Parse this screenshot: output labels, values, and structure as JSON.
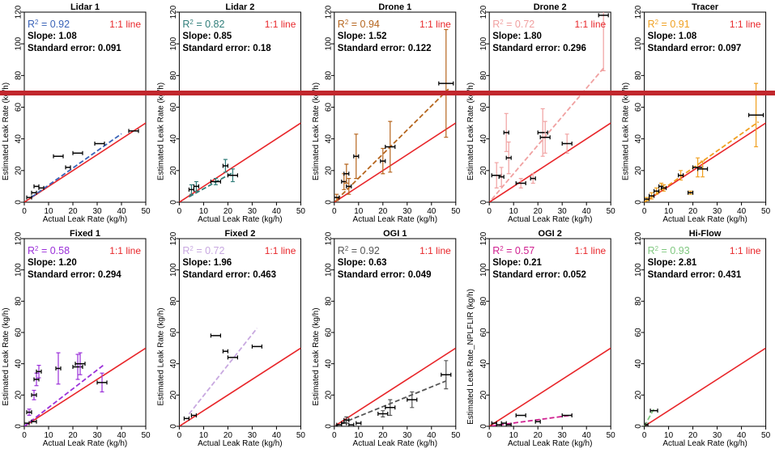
{
  "chart_data": [
    {
      "type": "scatter",
      "title": "Lidar 1",
      "xlabel": "Actual Leak Rate (kg/h)",
      "ylabel": "Estimated Leak Rate (kg/h)",
      "xlim": [
        0,
        50
      ],
      "ylim": [
        0,
        120
      ],
      "xticks": [
        0,
        10,
        20,
        30,
        40,
        50
      ],
      "yticks": [
        0,
        20,
        40,
        60,
        80,
        100,
        120
      ],
      "r2_label": "R",
      "r2_value": "= 0.92",
      "slope_text": "Slope: 1.08",
      "stderr_text": "Standard error: 0.091",
      "legend_text": "1:1 line",
      "fit_color": "#3a63b8",
      "point_color": "#000000",
      "fit_slope": 1.08,
      "fit_x": [
        3,
        40
      ],
      "points": [
        {
          "x": 2,
          "y": 3,
          "xe": 1
        },
        {
          "x": 4,
          "y": 6,
          "xe": 1
        },
        {
          "x": 5,
          "y": 10,
          "xe": 1
        },
        {
          "x": 7,
          "y": 9,
          "xe": 1
        },
        {
          "x": 14,
          "y": 29,
          "xe": 2
        },
        {
          "x": 18,
          "y": 22,
          "xe": 1
        },
        {
          "x": 22,
          "y": 31,
          "xe": 2
        },
        {
          "x": 31,
          "y": 37,
          "xe": 2
        },
        {
          "x": 45,
          "y": 45,
          "xe": 2
        }
      ]
    },
    {
      "type": "scatter",
      "title": "Lidar 2",
      "xlabel": "Actual Leak Rate (kg/h)",
      "ylabel": "Estimated Leak Rate (kg/h)",
      "xlim": [
        0,
        50
      ],
      "ylim": [
        0,
        120
      ],
      "xticks": [
        0,
        10,
        20,
        30,
        40,
        50
      ],
      "yticks": [
        0,
        20,
        40,
        60,
        80,
        100,
        120
      ],
      "r2_label": "R",
      "r2_value": "= 0.82",
      "slope_text": "Slope: 0.85",
      "stderr_text": "Standard error: 0.18",
      "legend_text": "1:1 line",
      "fit_color": "#2f7d79",
      "point_color": "#2f7d79",
      "fit_slope": 0.85,
      "fit_x": [
        4,
        22
      ],
      "points": [
        {
          "x": 5,
          "y": 8,
          "xe": 1,
          "ye": 3
        },
        {
          "x": 7,
          "y": 10,
          "xe": 1,
          "ye": 3
        },
        {
          "x": 15,
          "y": 13,
          "xe": 2,
          "ye": 2
        },
        {
          "x": 19,
          "y": 23,
          "xe": 1,
          "ye": 4
        },
        {
          "x": 22,
          "y": 17,
          "xe": 2,
          "ye": 4
        }
      ]
    },
    {
      "type": "scatter",
      "title": "Drone 1",
      "xlabel": "Actual Leak Rate (kg/h)",
      "ylabel": "Estimated Leak Rate (kg/h)",
      "xlim": [
        0,
        50
      ],
      "ylim": [
        0,
        120
      ],
      "xticks": [
        0,
        10,
        20,
        30,
        40,
        50
      ],
      "yticks": [
        0,
        20,
        40,
        60,
        80,
        100,
        120
      ],
      "r2_label": "R",
      "r2_value": "= 0.94",
      "slope_text": "Slope: 1.52",
      "stderr_text": "Standard error: 0.122",
      "legend_text": "1:1 line",
      "fit_color": "#b5651d",
      "point_color": "#b5651d",
      "fit_slope": 1.52,
      "fit_x": [
        1,
        47
      ],
      "points": [
        {
          "x": 1,
          "y": 3,
          "xe": 1,
          "ye": 2
        },
        {
          "x": 4,
          "y": 13,
          "xe": 1,
          "ye": 5
        },
        {
          "x": 5,
          "y": 18,
          "xe": 1,
          "ye": 6
        },
        {
          "x": 6,
          "y": 10,
          "xe": 1,
          "ye": 5
        },
        {
          "x": 9,
          "y": 29,
          "xe": 1,
          "ye": 14
        },
        {
          "x": 20,
          "y": 26,
          "xe": 1,
          "ye": 8
        },
        {
          "x": 23,
          "y": 35,
          "xe": 2,
          "ye": 16
        },
        {
          "x": 46,
          "y": 75,
          "xe": 3,
          "ye": 34
        }
      ]
    },
    {
      "type": "scatter",
      "title": "Drone 2",
      "xlabel": "Actual Leak Rate (kg/h)",
      "ylabel": "Estimated Leak Rate (kg/h)",
      "xlim": [
        0,
        50
      ],
      "ylim": [
        0,
        120
      ],
      "xticks": [
        0,
        10,
        20,
        30,
        40,
        50
      ],
      "yticks": [
        0,
        20,
        40,
        60,
        80,
        100,
        120
      ],
      "r2_label": "R",
      "r2_value": "= 0.72",
      "slope_text": "Slope: 1.80",
      "stderr_text": "Standard error: 0.296",
      "legend_text": "1:1 line",
      "fit_color": "#f0a0a0",
      "point_color": "#f0a0a0",
      "fit_slope": 1.8,
      "fit_x": [
        1,
        47
      ],
      "points": [
        {
          "x": 3,
          "y": 17,
          "xe": 2,
          "ye": 8
        },
        {
          "x": 5,
          "y": 16,
          "xe": 1,
          "ye": 6
        },
        {
          "x": 7,
          "y": 44,
          "xe": 1,
          "ye": 12
        },
        {
          "x": 8,
          "y": 28,
          "xe": 1,
          "ye": 10
        },
        {
          "x": 13,
          "y": 12,
          "xe": 2,
          "ye": 3
        },
        {
          "x": 18,
          "y": 15,
          "xe": 1,
          "ye": 3
        },
        {
          "x": 22,
          "y": 44,
          "xe": 2,
          "ye": 15
        },
        {
          "x": 23,
          "y": 41,
          "xe": 2,
          "ye": 10
        },
        {
          "x": 32,
          "y": 37,
          "xe": 2,
          "ye": 6
        },
        {
          "x": 47,
          "y": 118,
          "xe": 2,
          "ye": 35
        }
      ]
    },
    {
      "type": "scatter",
      "title": "Tracer",
      "xlabel": "Actual Leak Rate (kg/h)",
      "ylabel": "Estimated Leak Rate (kg/h)",
      "xlim": [
        0,
        50
      ],
      "ylim": [
        0,
        120
      ],
      "xticks": [
        0,
        10,
        20,
        30,
        40,
        50
      ],
      "yticks": [
        0,
        20,
        40,
        60,
        80,
        100,
        120
      ],
      "r2_label": "R",
      "r2_value": "= 0.91",
      "slope_text": "Slope: 1.08",
      "stderr_text": "Standard error: 0.097",
      "legend_text": "1:1 line",
      "fit_color": "#f0a020",
      "point_color": "#f0a020",
      "fit_slope": 1.08,
      "fit_x": [
        0,
        47
      ],
      "points": [
        {
          "x": 1,
          "y": 2,
          "xe": 1,
          "ye": 1
        },
        {
          "x": 3,
          "y": 4,
          "xe": 1,
          "ye": 2
        },
        {
          "x": 5,
          "y": 7,
          "xe": 1,
          "ye": 2
        },
        {
          "x": 7,
          "y": 10,
          "xe": 1,
          "ye": 2
        },
        {
          "x": 8,
          "y": 9,
          "xe": 1,
          "ye": 2
        },
        {
          "x": 15,
          "y": 17,
          "xe": 1,
          "ye": 3
        },
        {
          "x": 19,
          "y": 6,
          "xe": 1,
          "ye": 1
        },
        {
          "x": 22,
          "y": 22,
          "xe": 2,
          "ye": 6
        },
        {
          "x": 24,
          "y": 21,
          "xe": 2,
          "ye": 5
        },
        {
          "x": 46,
          "y": 55,
          "xe": 3,
          "ye": 20
        }
      ]
    },
    {
      "type": "scatter",
      "title": "Fixed 1",
      "xlabel": "Actual Leak Rate (kg/h)",
      "ylabel": "Estimated Leak Rate (kg/h)",
      "xlim": [
        0,
        50
      ],
      "ylim": [
        0,
        120
      ],
      "xticks": [
        0,
        10,
        20,
        30,
        40,
        50
      ],
      "yticks": [
        0,
        20,
        40,
        60,
        80,
        100,
        120
      ],
      "r2_label": "R",
      "r2_value": "= 0.58",
      "slope_text": "Slope: 1.20",
      "stderr_text": "Standard error: 0.294",
      "legend_text": "1:1 line",
      "fit_color": "#9b30d9",
      "point_color": "#9b30d9",
      "fit_slope": 1.2,
      "fit_x": [
        0,
        33
      ],
      "points": [
        {
          "x": 2,
          "y": 9,
          "xe": 1,
          "ye": 2
        },
        {
          "x": 4,
          "y": 20,
          "xe": 1,
          "ye": 3
        },
        {
          "x": 5,
          "y": 30,
          "xe": 1,
          "ye": 4
        },
        {
          "x": 6,
          "y": 35,
          "xe": 1,
          "ye": 4
        },
        {
          "x": 14,
          "y": 37,
          "xe": 1,
          "ye": 10
        },
        {
          "x": 22,
          "y": 38,
          "xe": 2,
          "ye": 8
        },
        {
          "x": 23,
          "y": 40,
          "xe": 2,
          "ye": 7
        },
        {
          "x": 32,
          "y": 28,
          "xe": 2,
          "ye": 6
        },
        {
          "x": 1,
          "y": 2,
          "xe": 1
        },
        {
          "x": 4,
          "y": 3,
          "xe": 1
        }
      ]
    },
    {
      "type": "scatter",
      "title": "Fixed 2",
      "xlabel": "Actual Leak Rate (kg/h)",
      "ylabel": "Estimated Leak Rate (kg/h)",
      "xlim": [
        0,
        50
      ],
      "ylim": [
        0,
        120
      ],
      "xticks": [
        0,
        10,
        20,
        30,
        40,
        50
      ],
      "yticks": [
        0,
        20,
        40,
        60,
        80,
        100,
        120
      ],
      "r2_label": "R",
      "r2_value": "= 0.72",
      "slope_text": "Slope: 1.96",
      "stderr_text": "Standard error: 0.463",
      "legend_text": "1:1 line",
      "fit_color": "#c8a8e0",
      "point_color": "#000000",
      "fit_slope": 1.96,
      "fit_x": [
        4,
        32
      ],
      "points": [
        {
          "x": 3,
          "y": 5,
          "xe": 1
        },
        {
          "x": 6,
          "y": 7,
          "xe": 1
        },
        {
          "x": 15,
          "y": 58,
          "xe": 2
        },
        {
          "x": 19,
          "y": 48,
          "xe": 1
        },
        {
          "x": 22,
          "y": 44,
          "xe": 2
        },
        {
          "x": 32,
          "y": 51,
          "xe": 2
        }
      ]
    },
    {
      "type": "scatter",
      "title": "OGI 1",
      "xlabel": "Actual Leak Rate (kg/h)",
      "ylabel": "Estimated Leak Rate (kg/h)",
      "xlim": [
        0,
        50
      ],
      "ylim": [
        0,
        120
      ],
      "xticks": [
        0,
        10,
        20,
        30,
        40,
        50
      ],
      "yticks": [
        0,
        20,
        40,
        60,
        80,
        100,
        120
      ],
      "r2_label": "R",
      "r2_value": "= 0.92",
      "slope_text": "Slope: 0.63",
      "stderr_text": "Standard error: 0.049",
      "legend_text": "1:1 line",
      "fit_color": "#555555",
      "point_color": "#555555",
      "fit_slope": 0.63,
      "fit_x": [
        0,
        46
      ],
      "points": [
        {
          "x": 2,
          "y": 1,
          "xe": 1
        },
        {
          "x": 4,
          "y": 2,
          "xe": 1
        },
        {
          "x": 5,
          "y": 4,
          "xe": 1,
          "ye": 2
        },
        {
          "x": 7,
          "y": 1,
          "xe": 1
        },
        {
          "x": 10,
          "y": 2,
          "xe": 1
        },
        {
          "x": 20,
          "y": 8,
          "xe": 2,
          "ye": 2
        },
        {
          "x": 23,
          "y": 12,
          "xe": 2,
          "ye": 5
        },
        {
          "x": 32,
          "y": 17,
          "xe": 2,
          "ye": 5
        },
        {
          "x": 46,
          "y": 33,
          "xe": 2,
          "ye": 9
        }
      ]
    },
    {
      "type": "scatter",
      "title": "OGI 2",
      "xlabel": "Actual Leak Rate (kg/h)",
      "ylabel": "Estimated Leak Rate_NPLFLIR (kg/h)",
      "xlim": [
        0,
        50
      ],
      "ylim": [
        0,
        120
      ],
      "xticks": [
        0,
        10,
        20,
        30,
        40,
        50
      ],
      "yticks": [
        0,
        20,
        40,
        60,
        80,
        100,
        120
      ],
      "r2_label": "R",
      "r2_value": "= 0.57",
      "slope_text": "Slope: 0.21",
      "stderr_text": "Standard error: 0.052",
      "legend_text": "1:1 line",
      "fit_color": "#d02090",
      "point_color": "#000000",
      "fit_slope": 0.21,
      "fit_x": [
        1,
        34
      ],
      "points": [
        {
          "x": 2,
          "y": 2,
          "xe": 1
        },
        {
          "x": 4,
          "y": 1,
          "xe": 1
        },
        {
          "x": 6,
          "y": 2,
          "xe": 1
        },
        {
          "x": 8,
          "y": 1,
          "xe": 1
        },
        {
          "x": 13,
          "y": 7,
          "xe": 2
        },
        {
          "x": 20,
          "y": 3,
          "xe": 1
        },
        {
          "x": 32,
          "y": 7,
          "xe": 2
        }
      ]
    },
    {
      "type": "scatter",
      "title": "Hi-Flow",
      "xlabel": "Actual Leak Rate (kg/h)",
      "ylabel": "",
      "xlim": [
        0,
        50
      ],
      "ylim": [
        0,
        120
      ],
      "xticks": [
        0,
        10,
        20,
        30,
        40,
        50
      ],
      "yticks": [
        0,
        20,
        40,
        60,
        80,
        100,
        120
      ],
      "r2_label": "R",
      "r2_value": "= 0.93",
      "slope_text": "Slope: 2.81",
      "stderr_text": "Standard error: 0.431",
      "legend_text": "1:1 line",
      "fit_color": "#80c880",
      "point_color": "#000000",
      "fit_slope": 2.81,
      "fit_x": [
        0,
        4
      ],
      "points": [
        {
          "x": 1,
          "y": 1,
          "xe": 0.5
        },
        {
          "x": 4,
          "y": 10,
          "xe": 1.5
        }
      ]
    }
  ]
}
